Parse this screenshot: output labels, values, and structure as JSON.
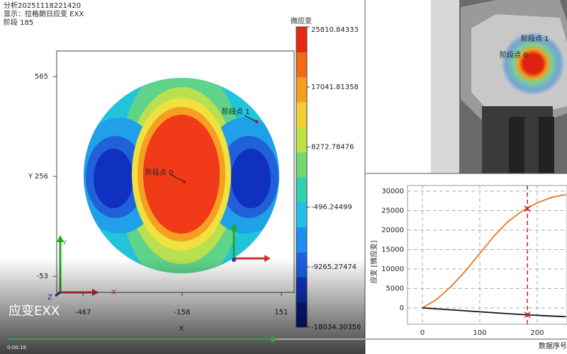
{
  "header": {
    "lines": [
      "分析20251118221420",
      "显示：拉格朗日应变 EXX",
      "阶段 185"
    ]
  },
  "contour": {
    "x_axis_label": "X",
    "y_axis_label": "Y",
    "xlim": [
      -549,
      191
    ],
    "ylim": [
      -103,
      644
    ],
    "xticks": [
      -467,
      -158,
      151
    ],
    "yticks": [
      565,
      256,
      -53
    ],
    "colorbar_title": "微应变",
    "colorbar_lim": [
      -18034.30356,
      25810.84333
    ],
    "colorbar_ticks": [
      25810.84333,
      17041.81358,
      8272.78476,
      -496.24499,
      -9265.27474,
      -18034.30356
    ],
    "points": [
      "阶段点 1",
      "阶段点 0"
    ],
    "triad": [
      "X",
      "Y",
      "Z"
    ]
  },
  "chart_data": {
    "type": "line",
    "x_label": "数据序号",
    "y_label": "应变 [微应变]",
    "xlim": [
      -26,
      252
    ],
    "ylim": [
      -4200,
      31450
    ],
    "xticks": [
      0,
      100,
      200
    ],
    "yticks": [
      0,
      5000,
      10000,
      15000,
      20000,
      25000,
      30000
    ],
    "grid": true,
    "x": [
      0,
      25,
      50,
      75,
      100,
      125,
      150,
      175,
      200,
      225,
      250
    ],
    "series": [
      {
        "color": "#e8781e",
        "values": [
          0,
          2200,
          5500,
          9500,
          14000,
          18500,
          22300,
          25000,
          27000,
          28400,
          29100
        ]
      },
      {
        "color": "#111111",
        "values": [
          0,
          -250,
          -500,
          -750,
          -1000,
          -1250,
          -1500,
          -1700,
          -1900,
          -2100,
          -2250
        ]
      }
    ],
    "cursor": {
      "x": 183,
      "values": [
        25500,
        -1750
      ],
      "color": "#d42020"
    }
  },
  "video": {
    "caption": "应变EXX",
    "time": "0:00:18"
  }
}
